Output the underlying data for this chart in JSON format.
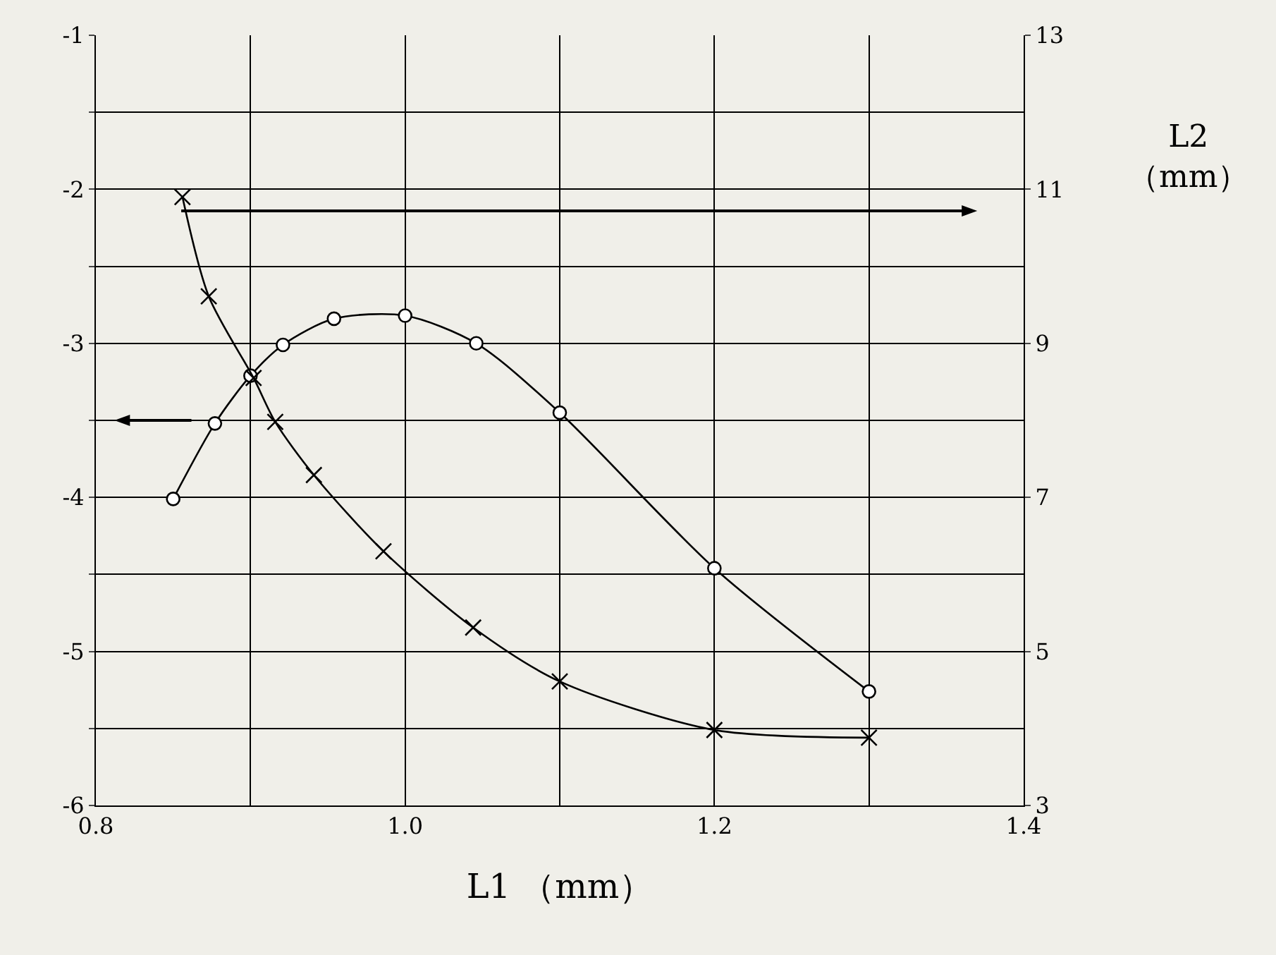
{
  "chart_data": {
    "type": "line",
    "xlabel": "L1 （mm）",
    "y2label": "L2\n（mm）",
    "xlim": [
      0.8,
      1.4
    ],
    "xticks": [
      {
        "value": 0.8,
        "label": "0.8"
      },
      {
        "value": 1.0,
        "label": "1.0"
      },
      {
        "value": 1.2,
        "label": "1.2"
      },
      {
        "value": 1.4,
        "label": "1.4"
      },
      {
        "value": 0.9,
        "label": null
      },
      {
        "value": 1.1,
        "label": null
      },
      {
        "value": 1.3,
        "label": null
      }
    ],
    "ylim": [
      -6,
      -1
    ],
    "yticks": [
      -6,
      -5,
      -4,
      -3,
      -2,
      -1,
      {
        "value": -5.5,
        "label": null
      },
      {
        "value": -4.5,
        "label": null
      },
      {
        "value": -3.5,
        "label": null
      },
      {
        "value": -2.5,
        "label": null
      },
      {
        "value": -1.5,
        "label": null
      }
    ],
    "y2lim": [
      3,
      13
    ],
    "y2ticks": [
      3,
      5,
      7,
      9,
      11,
      13
    ],
    "grid": true,
    "series": [
      {
        "color": "#000000",
        "marker": "circle",
        "line_style": "solid",
        "x": [
          0.85,
          0.877,
          0.9,
          0.921,
          0.954,
          1.0,
          1.046,
          1.1,
          1.2,
          1.3
        ],
        "values": [
          -4.01,
          -3.52,
          -3.21,
          -3.01,
          -2.84,
          -2.82,
          -3.0,
          -3.45,
          -4.46,
          -5.26
        ]
      },
      {
        "color": "#000000",
        "marker": "cross",
        "line_style": "solid",
        "axis": "y2",
        "x": [
          0.856,
          0.873,
          0.902,
          0.916,
          0.941,
          0.986,
          1.044,
          1.1,
          1.2,
          1.3
        ],
        "values": [
          10.9,
          9.61,
          8.55,
          7.98,
          7.29,
          6.3,
          5.31,
          4.61,
          3.98,
          3.88
        ]
      }
    ]
  }
}
